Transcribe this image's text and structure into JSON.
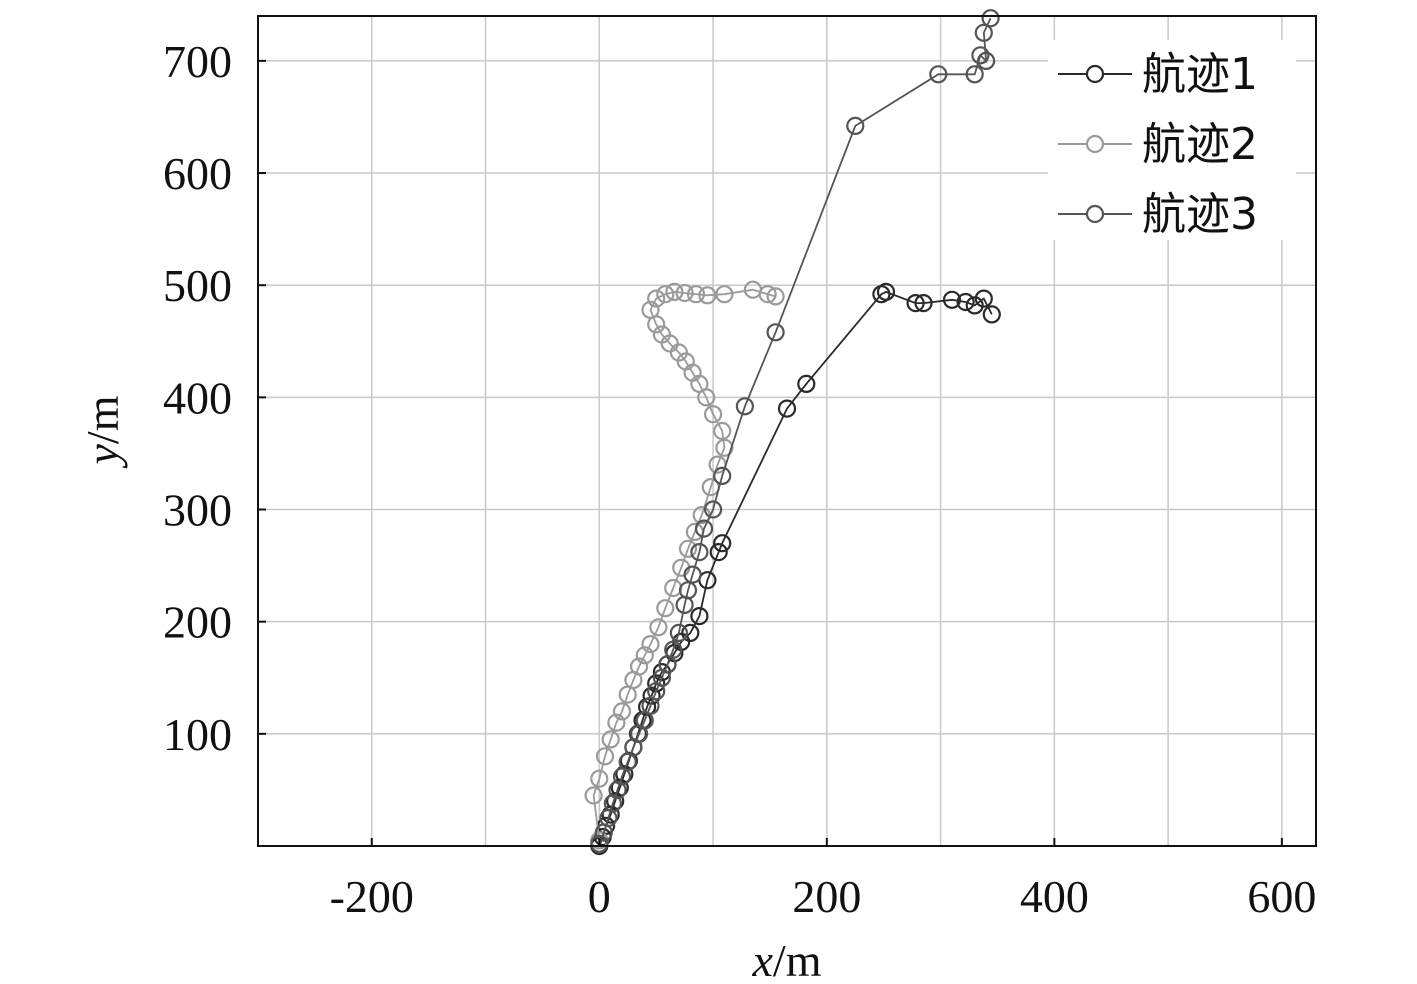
{
  "chart_data": {
    "type": "line",
    "xlabel_var": "x",
    "xlabel_unit": "/m",
    "ylabel_var": "y",
    "ylabel_unit": "/m",
    "xlim": [
      -300,
      630
    ],
    "ylim": [
      0,
      740
    ],
    "xticks": [
      -200,
      0,
      200,
      400,
      600
    ],
    "xtick_labels": [
      "-200",
      "0",
      "200",
      "400",
      "600"
    ],
    "yticks": [
      100,
      200,
      300,
      400,
      500,
      600,
      700
    ],
    "ytick_labels": [
      "100",
      "200",
      "300",
      "400",
      "500",
      "600",
      "700"
    ],
    "xgrid": [
      -200,
      -100,
      0,
      100,
      200,
      300,
      400,
      500,
      600
    ],
    "grid": true,
    "legend_position": "top-right",
    "series": [
      {
        "name": "航迹1",
        "color": "#2a2a2a",
        "points": [
          [
            0,
            0
          ],
          [
            3,
            8
          ],
          [
            6,
            18
          ],
          [
            10,
            28
          ],
          [
            14,
            40
          ],
          [
            18,
            52
          ],
          [
            22,
            64
          ],
          [
            26,
            76
          ],
          [
            30,
            88
          ],
          [
            34,
            100
          ],
          [
            38,
            112
          ],
          [
            42,
            124
          ],
          [
            46,
            134
          ],
          [
            50,
            145
          ],
          [
            55,
            155
          ],
          [
            60,
            162
          ],
          [
            66,
            172
          ],
          [
            72,
            182
          ],
          [
            80,
            190
          ],
          [
            88,
            205
          ],
          [
            95,
            237
          ],
          [
            105,
            262
          ],
          [
            108,
            270
          ],
          [
            165,
            390
          ],
          [
            182,
            412
          ],
          [
            248,
            492
          ],
          [
            252,
            494
          ],
          [
            278,
            484
          ],
          [
            285,
            484
          ],
          [
            310,
            487
          ],
          [
            322,
            485
          ],
          [
            330,
            482
          ],
          [
            338,
            488
          ],
          [
            345,
            474
          ]
        ]
      },
      {
        "name": "航迹2",
        "color": "#9a9a9a",
        "points": [
          [
            0,
            5
          ],
          [
            -5,
            45
          ],
          [
            0,
            60
          ],
          [
            5,
            80
          ],
          [
            10,
            95
          ],
          [
            15,
            110
          ],
          [
            20,
            120
          ],
          [
            25,
            135
          ],
          [
            30,
            148
          ],
          [
            35,
            160
          ],
          [
            40,
            170
          ],
          [
            45,
            180
          ],
          [
            52,
            195
          ],
          [
            58,
            212
          ],
          [
            65,
            230
          ],
          [
            72,
            248
          ],
          [
            78,
            265
          ],
          [
            84,
            280
          ],
          [
            90,
            295
          ],
          [
            98,
            320
          ],
          [
            104,
            340
          ],
          [
            110,
            355
          ],
          [
            108,
            370
          ],
          [
            100,
            385
          ],
          [
            94,
            400
          ],
          [
            88,
            412
          ],
          [
            82,
            422
          ],
          [
            76,
            432
          ],
          [
            70,
            440
          ],
          [
            62,
            448
          ],
          [
            55,
            456
          ],
          [
            50,
            465
          ],
          [
            45,
            478
          ],
          [
            50,
            488
          ],
          [
            58,
            492
          ],
          [
            66,
            494
          ],
          [
            75,
            493
          ],
          [
            85,
            492
          ],
          [
            95,
            491
          ],
          [
            110,
            492
          ],
          [
            135,
            496
          ],
          [
            148,
            492
          ],
          [
            155,
            490
          ]
        ]
      },
      {
        "name": "航迹3",
        "color": "#555555",
        "points": [
          [
            0,
            2
          ],
          [
            4,
            12
          ],
          [
            8,
            25
          ],
          [
            12,
            38
          ],
          [
            16,
            50
          ],
          [
            20,
            62
          ],
          [
            25,
            75
          ],
          [
            30,
            88
          ],
          [
            35,
            100
          ],
          [
            40,
            112
          ],
          [
            45,
            125
          ],
          [
            50,
            138
          ],
          [
            55,
            150
          ],
          [
            60,
            162
          ],
          [
            65,
            175
          ],
          [
            70,
            190
          ],
          [
            75,
            215
          ],
          [
            78,
            228
          ],
          [
            82,
            242
          ],
          [
            88,
            262
          ],
          [
            92,
            283
          ],
          [
            100,
            300
          ],
          [
            108,
            330
          ],
          [
            128,
            392
          ],
          [
            155,
            458
          ],
          [
            225,
            642
          ],
          [
            298,
            688
          ],
          [
            330,
            688
          ],
          [
            335,
            705
          ],
          [
            340,
            700
          ],
          [
            338,
            725
          ],
          [
            344,
            738
          ]
        ]
      }
    ]
  }
}
